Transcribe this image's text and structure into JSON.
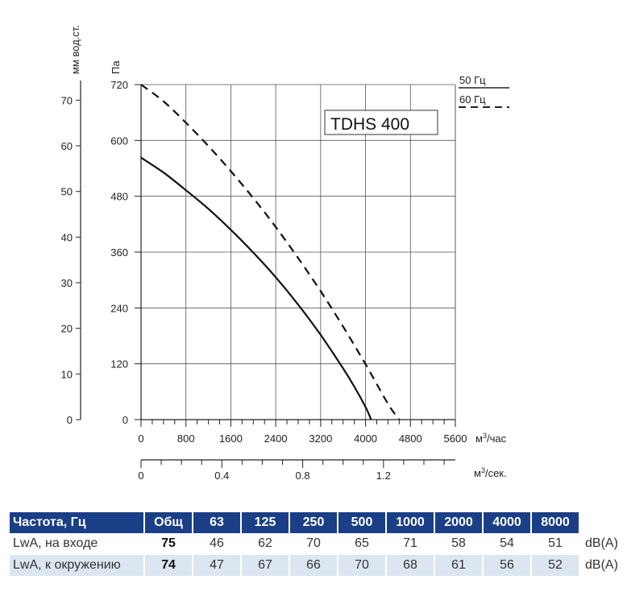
{
  "chart_data": {
    "type": "line",
    "model": "TDHS 400",
    "y_left_unit": "мм вод.ст.",
    "y_left_ticks": [
      0,
      10,
      20,
      30,
      40,
      50,
      60,
      70
    ],
    "y_right_unit": "Па",
    "y_right_ticks": [
      0,
      120,
      240,
      360,
      480,
      600,
      720
    ],
    "ylim": [
      0,
      720
    ],
    "x_unit": "м³/час",
    "x_ticks": [
      0,
      800,
      1600,
      2400,
      3200,
      4000,
      4800,
      5600
    ],
    "xlim": [
      0,
      5600
    ],
    "x2_unit": "м³/сек.",
    "x2_ticks": [
      0,
      0.4,
      0.8,
      1.2
    ],
    "xlim2": [
      0,
      1.5556
    ],
    "legend": [
      "50 Гц",
      "60 Гц"
    ],
    "series": [
      {
        "name": "50 Гц",
        "style": "solid",
        "x": [
          0,
          400,
          800,
          1200,
          1600,
          2000,
          2400,
          2800,
          3200,
          3600,
          3800,
          4000,
          4100
        ],
        "y": [
          563,
          531,
          493,
          453,
          408,
          359,
          306,
          247,
          182,
          110,
          71,
          27,
          0
        ]
      },
      {
        "name": "60 Гц",
        "style": "dashed",
        "x": [
          0,
          400,
          800,
          1200,
          1600,
          2000,
          2400,
          2800,
          3200,
          3600,
          4000,
          4400,
          4600
        ],
        "y": [
          722,
          684,
          638,
          588,
          534,
          476,
          414,
          347,
          276,
          200,
          119,
          34,
          0
        ]
      }
    ]
  },
  "noise_table": {
    "header": {
      "label": "Частота, Гц",
      "total": "Общ",
      "freqs": [
        "63",
        "125",
        "250",
        "500",
        "1000",
        "2000",
        "4000",
        "8000"
      ]
    },
    "rows": [
      {
        "label": "LwA, на входе",
        "total": "75",
        "values": [
          "46",
          "62",
          "70",
          "65",
          "71",
          "58",
          "54",
          "51"
        ],
        "unit": "dB(A)"
      },
      {
        "label": "LwA, к окружению",
        "total": "74",
        "values": [
          "47",
          "67",
          "66",
          "70",
          "68",
          "61",
          "56",
          "52"
        ],
        "unit": "dB(A)"
      }
    ]
  },
  "colors": {
    "header_bg": "#1b3f86",
    "row_alt_bg": "#dce6f1",
    "grid": "#555555"
  }
}
